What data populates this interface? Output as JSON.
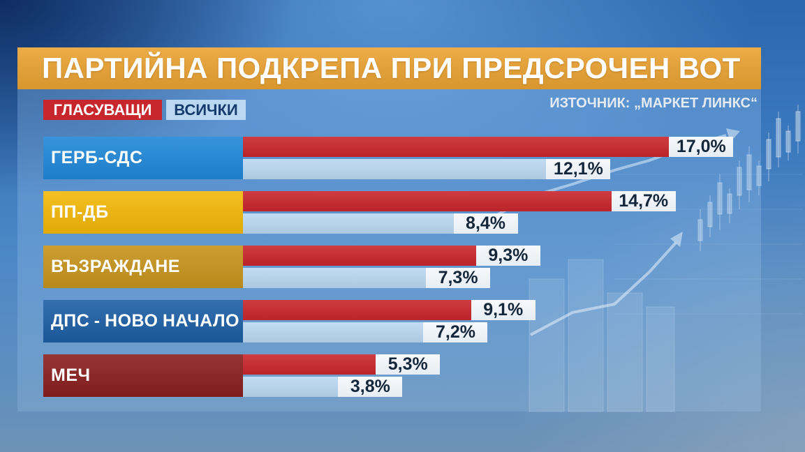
{
  "source": "ИЗТОЧНИК: „МАРКЕТ ЛИНКС“",
  "colors": {
    "title_banner": "#e3a23b",
    "value_box": "#eef3f8",
    "legend_all_text": "#163a6b"
  },
  "chart_data": {
    "type": "bar",
    "orientation": "horizontal",
    "title": "ПАРТИЙНА ПОДКРЕПА ПРИ ПРЕДСРОЧЕН ВОТ",
    "legend": "top-left",
    "categories": [
      "ГЕРБ-СДС",
      "ПП-ДБ",
      "ВЪЗРАЖДАНЕ",
      "ДПС - НОВО НАЧАЛО",
      "МЕЧ"
    ],
    "category_colors": [
      "#2088d8",
      "#f3b808",
      "#c7941c",
      "#1d5ea5",
      "#8a1e1e"
    ],
    "series": [
      {
        "name": "ГЛАСУВАЩИ",
        "color": "#c8262d",
        "values": [
          17.0,
          14.7,
          9.3,
          9.1,
          5.3
        ],
        "labels": [
          "17,0%",
          "14,7%",
          "9,3%",
          "9,1%",
          "5,3%"
        ]
      },
      {
        "name": "ВСИЧКИ",
        "color": "#bad8f2",
        "values": [
          12.1,
          8.4,
          7.3,
          7.2,
          3.8
        ],
        "labels": [
          "12,1%",
          "8,4%",
          "7,3%",
          "7,2%",
          "3,8%"
        ]
      }
    ]
  }
}
